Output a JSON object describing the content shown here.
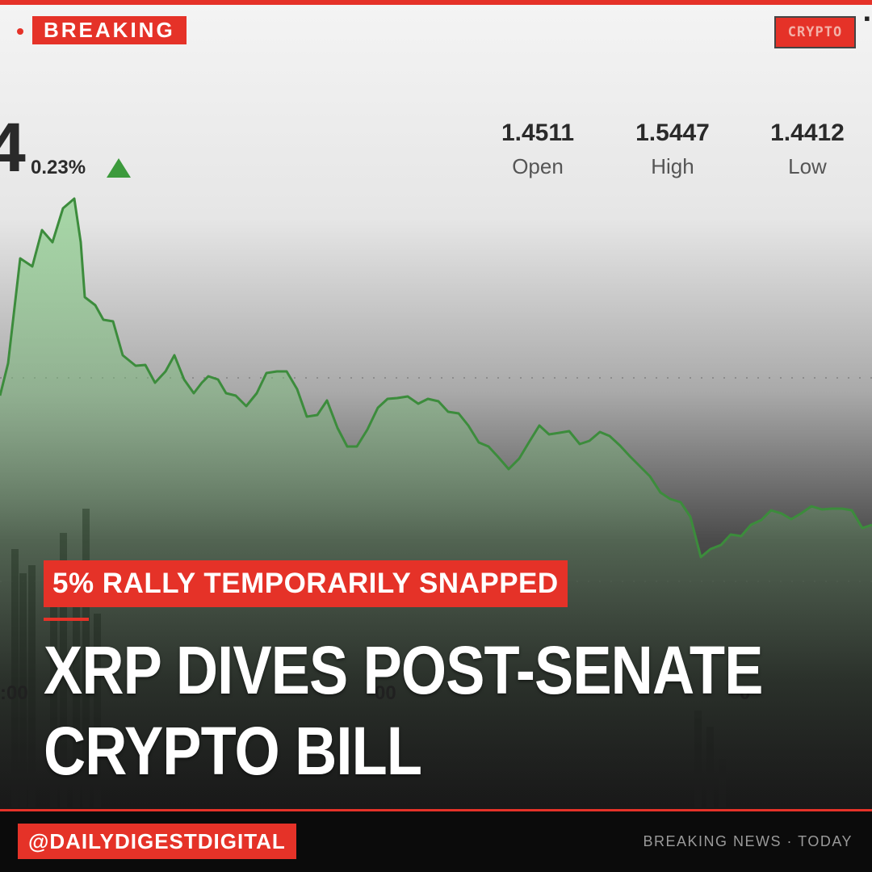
{
  "badge": {
    "breaking": "BREAKING",
    "category": "CRYPTO"
  },
  "ticker": {
    "price_fragment": "4",
    "change": "0.23%",
    "change_direction": "up",
    "stats": [
      {
        "value": "1.4511",
        "label": "Open"
      },
      {
        "value": "1.5447",
        "label": "High"
      },
      {
        "value": "1.4412",
        "label": "Low"
      }
    ],
    "axis_fragments": [
      ":00",
      "00",
      "0"
    ]
  },
  "headline": {
    "kicker": "5% RALLY TEMPORARILY SNAPPED",
    "line1": "XRP DIVES POST-SENATE",
    "line2": "CRYPTO BILL"
  },
  "footer": {
    "handle": "@DAILYDIGESTDIGITAL",
    "right_text": "BREAKING NEWS · TODAY"
  },
  "colors": {
    "accent": "#e53228",
    "chart_line": "#3c8c3c",
    "chart_fill": "#8fd08f"
  }
}
